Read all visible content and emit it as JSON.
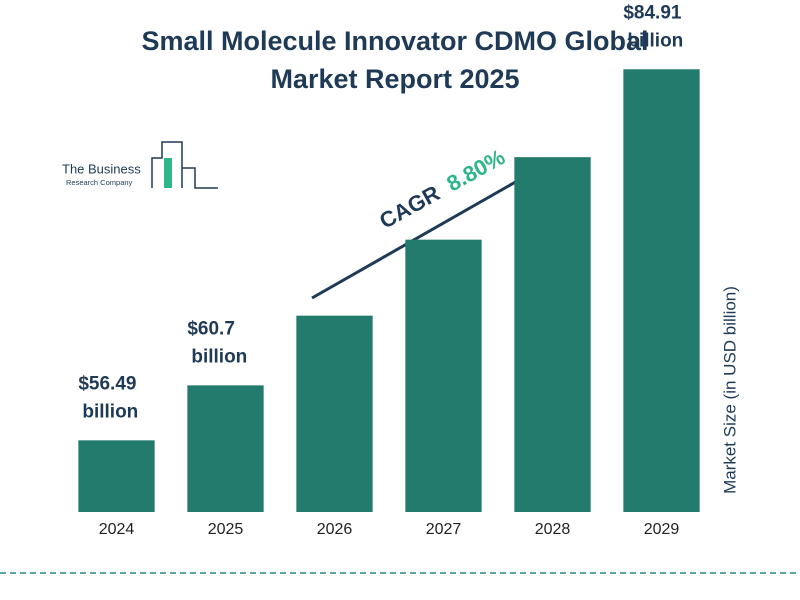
{
  "logo": {
    "line1": "The Business",
    "line2": "Research Company"
  },
  "chart_data": {
    "type": "bar",
    "title": "Small Molecule Innovator CDMO Global Market Report 2025",
    "y_label": "Market Size (in USD billion)",
    "categories": [
      "2024",
      "2025",
      "2026",
      "2027",
      "2028",
      "2029"
    ],
    "values": [
      56.49,
      60.7,
      66.04,
      71.86,
      78.18,
      84.91
    ],
    "value_labels": [
      "$56.49 billion",
      "$60.7 billion",
      null,
      null,
      null,
      "$84.91 billion"
    ],
    "color": "#237b6d",
    "ylim": [
      51,
      87
    ],
    "annotation": {
      "label": "CAGR",
      "value": "8.80%"
    }
  }
}
